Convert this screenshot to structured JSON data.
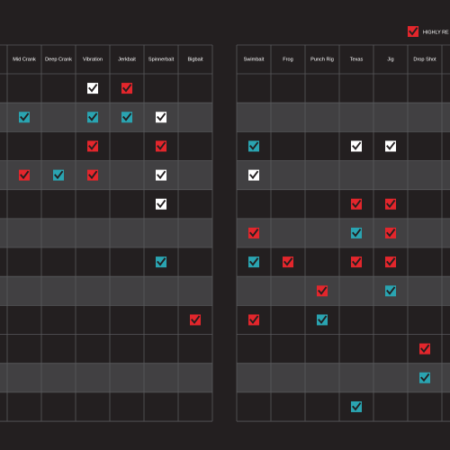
{
  "legend": {
    "label": "HIGHLY RE",
    "color": "#e3262c"
  },
  "tables": [
    {
      "headers": [
        "Mid Crank",
        "Deep Crank",
        "Vibration",
        "Jerkbait",
        "Spinnerbait",
        "Bigbait"
      ],
      "rows": [
        [
          null,
          null,
          "#ffffff",
          "#e3262c",
          null,
          null
        ],
        [
          "#2aa4b1",
          null,
          "#2aa4b1",
          "#2aa4b1",
          "#ffffff",
          null
        ],
        [
          null,
          null,
          "#e3262c",
          null,
          "#e3262c",
          null
        ],
        [
          "#e3262c",
          "#2aa4b1",
          "#e3262c",
          null,
          "#ffffff",
          null
        ],
        [
          null,
          null,
          null,
          null,
          "#ffffff",
          null
        ],
        [
          null,
          null,
          null,
          null,
          null,
          null
        ],
        [
          null,
          null,
          null,
          null,
          "#2aa4b1",
          null
        ],
        [
          null,
          null,
          null,
          null,
          null,
          null
        ],
        [
          null,
          null,
          null,
          null,
          null,
          "#e3262c"
        ],
        [
          null,
          null,
          null,
          null,
          null,
          null
        ],
        [
          null,
          null,
          null,
          null,
          null,
          null
        ],
        [
          null,
          null,
          null,
          null,
          null,
          null
        ]
      ]
    },
    {
      "headers": [
        "Swimbait",
        "Frog",
        "Punch Rig",
        "Texas",
        "Jig",
        "Drop Shot"
      ],
      "rows": [
        [
          null,
          null,
          null,
          null,
          null,
          null
        ],
        [
          null,
          null,
          null,
          null,
          null,
          null
        ],
        [
          "#2aa4b1",
          null,
          null,
          "#ffffff",
          "#ffffff",
          null
        ],
        [
          "#ffffff",
          null,
          null,
          null,
          null,
          null
        ],
        [
          null,
          null,
          null,
          "#e3262c",
          "#e3262c",
          null
        ],
        [
          "#e3262c",
          null,
          null,
          "#2aa4b1",
          "#e3262c",
          null
        ],
        [
          "#2aa4b1",
          "#e3262c",
          null,
          "#e3262c",
          "#e3262c",
          null
        ],
        [
          null,
          null,
          "#e3262c",
          null,
          "#2aa4b1",
          null
        ],
        [
          "#e3262c",
          null,
          "#2aa4b1",
          null,
          null,
          null
        ],
        [
          null,
          null,
          null,
          null,
          null,
          "#e3262c"
        ],
        [
          null,
          null,
          null,
          null,
          null,
          "#2aa4b1"
        ],
        [
          null,
          null,
          null,
          "#2aa4b1",
          null,
          null
        ]
      ]
    }
  ]
}
